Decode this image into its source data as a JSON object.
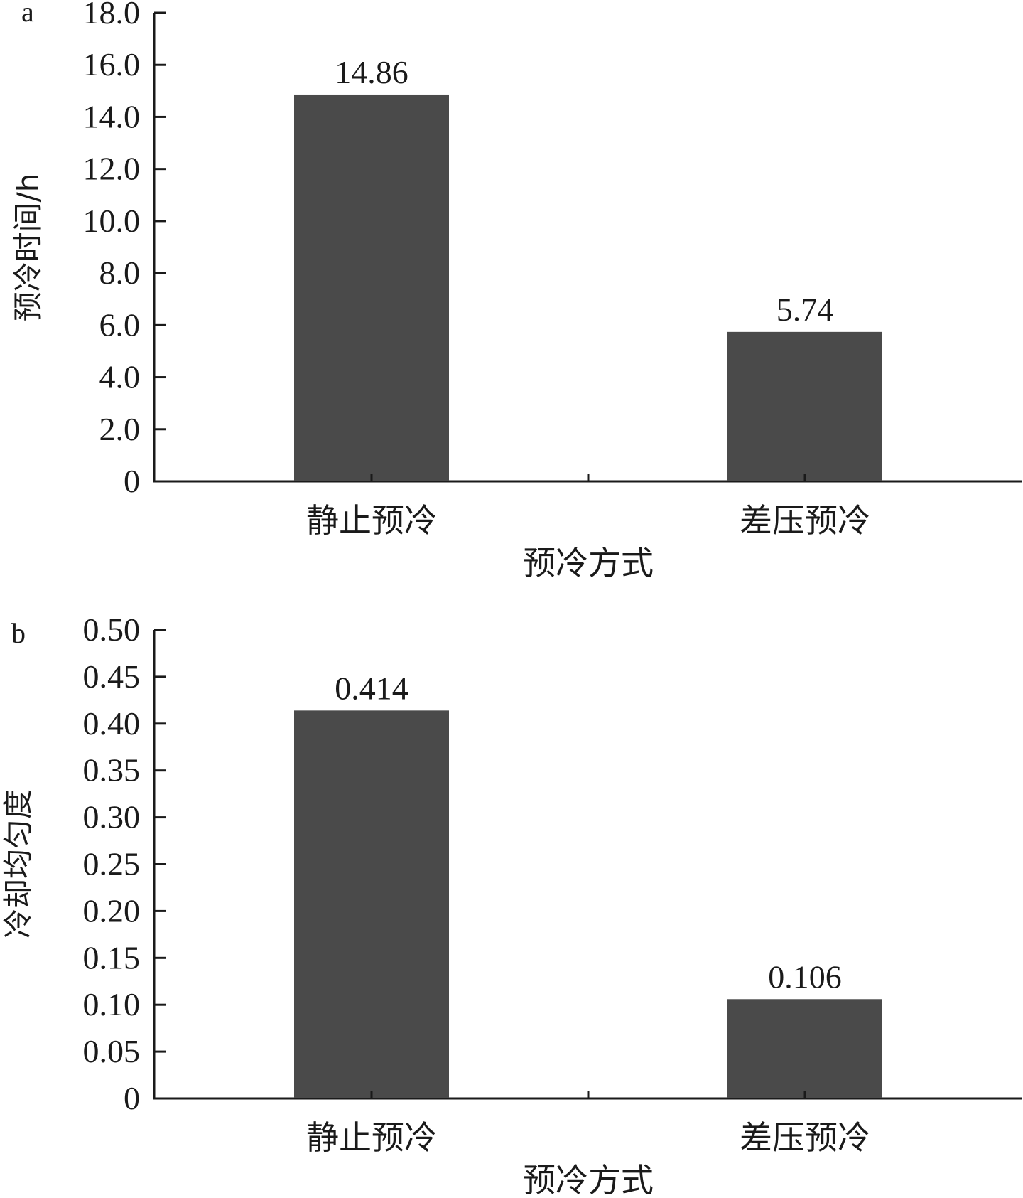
{
  "chart_data": [
    {
      "type": "bar",
      "panel_label": "a",
      "categories": [
        "静止预冷",
        "差压预冷"
      ],
      "values": [
        14.86,
        5.74
      ],
      "data_labels": [
        "14.86",
        "5.74"
      ],
      "xlabel": "预冷方式",
      "ylabel": "预冷时间/h",
      "ylim": [
        0,
        18
      ],
      "yticks": [
        0,
        2,
        4,
        6,
        8,
        10,
        12,
        14,
        16,
        18
      ],
      "ytick_labels": [
        "0",
        "2.0",
        "4.0",
        "6.0",
        "8.0",
        "10.0",
        "12.0",
        "14.0",
        "16.0",
        "18.0"
      ],
      "bar_color": "#4a4a4a",
      "grid": false
    },
    {
      "type": "bar",
      "panel_label": "b",
      "categories": [
        "静止预冷",
        "差压预冷"
      ],
      "values": [
        0.414,
        0.106
      ],
      "data_labels": [
        "0.414",
        "0.106"
      ],
      "xlabel": "预冷方式",
      "ylabel": "冷却均匀度",
      "ylim": [
        0,
        0.5
      ],
      "yticks": [
        0,
        0.05,
        0.1,
        0.15,
        0.2,
        0.25,
        0.3,
        0.35,
        0.4,
        0.45,
        0.5
      ],
      "ytick_labels": [
        "0",
        "0.05",
        "0.10",
        "0.15",
        "0.20",
        "0.25",
        "0.30",
        "0.35",
        "0.40",
        "0.45",
        "0.50"
      ],
      "bar_color": "#4a4a4a",
      "grid": false
    }
  ]
}
